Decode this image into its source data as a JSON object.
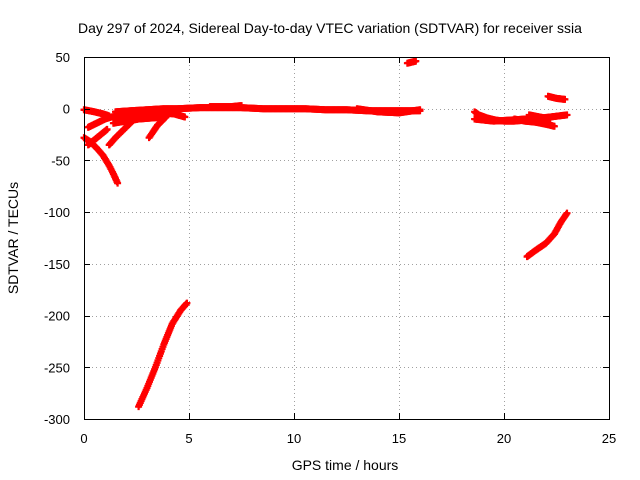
{
  "chart_data": {
    "type": "scatter",
    "title": "Day 297 of 2024, Sidereal Day-to-day VTEC variation (SDTVAR) for receiver ssia",
    "xlabel": "GPS time / hours",
    "ylabel": "SDTVAR / TECUs",
    "xlim": [
      0,
      25
    ],
    "ylim": [
      -300,
      50
    ],
    "x_ticks": [
      0,
      5,
      10,
      15,
      20,
      25
    ],
    "y_ticks": [
      50,
      0,
      -50,
      -100,
      -150,
      -200,
      -250,
      -300
    ],
    "grid": true,
    "marker": "plus",
    "series_color": "#ff0000",
    "segments": [
      [
        [
          0.0,
          -1
        ],
        [
          0.5,
          -3
        ],
        [
          0.9,
          -5
        ],
        [
          1.2,
          -7
        ]
      ],
      [
        [
          0.0,
          -28
        ],
        [
          0.3,
          -32
        ],
        [
          0.6,
          -38
        ],
        [
          0.9,
          -45
        ],
        [
          1.2,
          -55
        ],
        [
          1.4,
          -63
        ],
        [
          1.6,
          -72
        ]
      ],
      [
        [
          0.2,
          -35
        ],
        [
          0.5,
          -30
        ],
        [
          0.8,
          -25
        ],
        [
          1.1,
          -20
        ]
      ],
      [
        [
          0.2,
          -18
        ],
        [
          0.6,
          -14
        ],
        [
          1.0,
          -10
        ],
        [
          1.3,
          -8
        ]
      ],
      [
        [
          1.2,
          -35
        ],
        [
          1.5,
          -28
        ],
        [
          1.8,
          -22
        ],
        [
          2.1,
          -16
        ],
        [
          2.4,
          -10
        ]
      ],
      [
        [
          1.3,
          -8
        ],
        [
          2.0,
          -6
        ],
        [
          2.8,
          -5
        ],
        [
          3.6,
          -4
        ],
        [
          4.3,
          -5
        ],
        [
          4.8,
          -8
        ]
      ],
      [
        [
          1.4,
          -14
        ],
        [
          2.0,
          -12
        ],
        [
          2.6,
          -10
        ],
        [
          3.2,
          -9
        ],
        [
          3.9,
          -8
        ]
      ],
      [
        [
          1.5,
          -3
        ],
        [
          2.2,
          -2
        ],
        [
          3.0,
          -1
        ],
        [
          3.8,
          0
        ],
        [
          4.5,
          0
        ]
      ],
      [
        [
          3.1,
          -28
        ],
        [
          3.3,
          -22
        ],
        [
          3.5,
          -16
        ],
        [
          3.7,
          -12
        ],
        [
          3.9,
          -8
        ]
      ],
      [
        [
          2.6,
          -288
        ],
        [
          3.0,
          -270
        ],
        [
          3.4,
          -250
        ],
        [
          3.8,
          -228
        ],
        [
          4.2,
          -208
        ],
        [
          4.6,
          -195
        ],
        [
          4.9,
          -188
        ]
      ],
      [
        [
          4.5,
          0
        ],
        [
          5.5,
          1
        ],
        [
          6.5,
          1
        ],
        [
          7.5,
          1
        ],
        [
          8.5,
          0
        ],
        [
          9.5,
          0
        ],
        [
          10.5,
          0
        ],
        [
          11.5,
          -1
        ],
        [
          12.5,
          -1
        ],
        [
          13.5,
          -2
        ],
        [
          14.5,
          -2
        ],
        [
          15.5,
          -2
        ],
        [
          16.0,
          -2
        ]
      ],
      [
        [
          6.0,
          2
        ],
        [
          7.0,
          2
        ],
        [
          7.5,
          3
        ]
      ],
      [
        [
          13.0,
          0
        ],
        [
          14.0,
          -3
        ],
        [
          15.0,
          -4
        ],
        [
          16.0,
          -1
        ]
      ],
      [
        [
          15.4,
          44
        ],
        [
          15.6,
          45
        ],
        [
          15.8,
          46
        ]
      ],
      [
        [
          18.6,
          -3
        ],
        [
          18.8,
          -6
        ],
        [
          19.2,
          -9
        ],
        [
          19.6,
          -11
        ],
        [
          20.0,
          -12
        ],
        [
          20.5,
          -12
        ],
        [
          21.0,
          -11
        ]
      ],
      [
        [
          18.6,
          -10
        ],
        [
          19.5,
          -12
        ],
        [
          20.3,
          -11
        ],
        [
          21.0,
          -10
        ],
        [
          21.8,
          -9
        ],
        [
          22.6,
          -7
        ],
        [
          23.0,
          -6
        ]
      ],
      [
        [
          20.5,
          -10
        ],
        [
          21.0,
          -12
        ],
        [
          21.5,
          -13
        ],
        [
          22.0,
          -15
        ],
        [
          22.4,
          -17
        ]
      ],
      [
        [
          21.2,
          -6
        ],
        [
          21.7,
          -8
        ],
        [
          22.2,
          -10
        ]
      ],
      [
        [
          22.1,
          12
        ],
        [
          22.5,
          10
        ],
        [
          22.9,
          9
        ]
      ],
      [
        [
          21.1,
          -143
        ],
        [
          21.5,
          -137
        ],
        [
          22.0,
          -130
        ],
        [
          22.4,
          -121
        ],
        [
          22.7,
          -110
        ],
        [
          23.0,
          -101
        ]
      ]
    ]
  }
}
